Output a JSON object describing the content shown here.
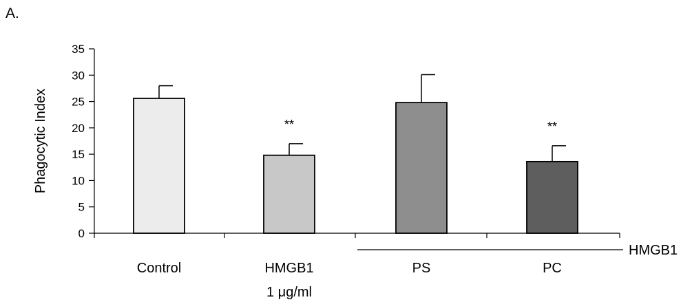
{
  "panel_label": "A.",
  "chart_data": {
    "type": "bar",
    "ylabel": "Phagocytic Index",
    "ylim": [
      0,
      35
    ],
    "yticks": [
      0,
      5,
      10,
      15,
      20,
      25,
      30,
      35
    ],
    "grid": false,
    "categories": [
      {
        "label": "Control",
        "sublabel": "",
        "value": 25.6,
        "error": 2.4,
        "significance": "",
        "color": "#ececec"
      },
      {
        "label": "HMGB1",
        "sublabel": "1 μg/ml",
        "value": 14.8,
        "error": 2.2,
        "significance": "**",
        "color": "#c8c8c8"
      },
      {
        "label": "PS",
        "sublabel": "",
        "value": 24.8,
        "error": 5.3,
        "significance": "",
        "color": "#8e8e8e"
      },
      {
        "label": "PC",
        "sublabel": "",
        "value": 13.6,
        "error": 3.0,
        "significance": "**",
        "color": "#5e5e5e"
      }
    ],
    "group_bracket": {
      "label": "HMGB1",
      "spans": [
        "PS",
        "PC"
      ]
    }
  }
}
